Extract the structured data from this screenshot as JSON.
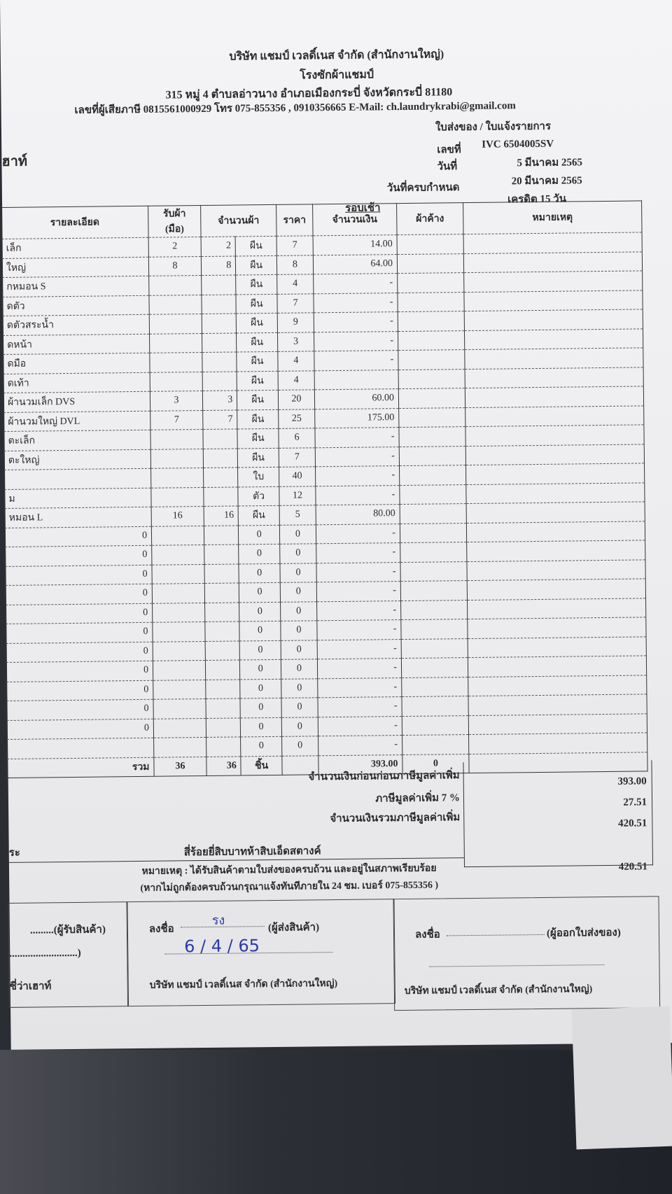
{
  "company": {
    "name": "บริษัท แชมป์ เวลดิ์เนส จำกัด (สำนักงานใหญ่)",
    "subtitle": "โรงซักผ้าแชมป์",
    "address": "315 หมู่ 4 ตำบลอ่าวนาง อำเภอเมืองกระบี่ จังหวัดกระบี่ 81180",
    "contact": "เลขที่ผู้เสียภาษี 0815561000929 โทร 075-855356 , 0910356665 E-Mail: ch.laundrykrabi@gmail.com"
  },
  "doc": {
    "type": "ใบส่งของ / ใบแจ้งรายการ",
    "customer_partial": "ฮาท์",
    "no_label": "เลขที่",
    "no": "IVC 6504005SV",
    "date_label": "วันที่",
    "date": "5 มีนาคม 2565",
    "due_label": "วันที่ครบกำหนด",
    "due": "20 มีนาคม 2565",
    "credit": "เครดิต 15 วัน",
    "round": "รอบเช้า"
  },
  "headers": [
    "รายละเอียด",
    "รับผ้า (มือ)",
    "จำนวนผ้า",
    "ราคา",
    "จำนวนเงิน",
    "ผ้าค้าง",
    "หมายเหตุ"
  ],
  "rows": [
    [
      "เล็ก",
      "2",
      "2",
      "ผืน",
      "7",
      "14.00"
    ],
    [
      "ใหญ่",
      "8",
      "8",
      "ผืน",
      "8",
      "64.00"
    ],
    [
      "กหมอน S",
      "",
      "",
      "ผืน",
      "4",
      "-"
    ],
    [
      "ดตัว",
      "",
      "",
      "ผืน",
      "7",
      "-"
    ],
    [
      "ดตัวสระน้ำ",
      "",
      "",
      "ผืน",
      "9",
      "-"
    ],
    [
      "ดหน้า",
      "",
      "",
      "ผืน",
      "3",
      "-"
    ],
    [
      "ดมือ",
      "",
      "",
      "ผืน",
      "4",
      "-"
    ],
    [
      "ดเท้า",
      "",
      "",
      "ผืน",
      "4",
      ""
    ],
    [
      "ผ้านวมเล็ก DVS",
      "3",
      "3",
      "ผืน",
      "20",
      "60.00"
    ],
    [
      "ผ้านวมใหญ่ DVL",
      "7",
      "7",
      "ผืน",
      "25",
      "175.00"
    ],
    [
      "ตะเล็ก",
      "",
      "",
      "ผืน",
      "6",
      "-"
    ],
    [
      "ตะใหญ่",
      "",
      "",
      "ผืน",
      "7",
      "-"
    ],
    [
      "",
      "",
      "",
      "ใบ",
      "40",
      "-"
    ],
    [
      "ม",
      "",
      "",
      "ตัว",
      "12",
      "-"
    ],
    [
      "หมอน L",
      "16",
      "16",
      "ผืน",
      "5",
      "80.00"
    ],
    [
      "0",
      "",
      "",
      "0",
      "0",
      "-"
    ],
    [
      "0",
      "",
      "",
      "0",
      "0",
      "-"
    ],
    [
      "0",
      "",
      "",
      "0",
      "0",
      "-"
    ],
    [
      "0",
      "",
      "",
      "0",
      "0",
      "-"
    ],
    [
      "0",
      "",
      "",
      "0",
      "0",
      "-"
    ],
    [
      "0",
      "",
      "",
      "0",
      "0",
      "-"
    ],
    [
      "0",
      "",
      "",
      "0",
      "0",
      "-"
    ],
    [
      "0",
      "",
      "",
      "0",
      "0",
      "-"
    ],
    [
      "0",
      "",
      "",
      "0",
      "0",
      "-"
    ],
    [
      "0",
      "",
      "",
      "0",
      "0",
      "-"
    ],
    [
      "0",
      "",
      "",
      "0",
      "0",
      "-"
    ],
    [
      "",
      "",
      "",
      "0",
      "0",
      "-"
    ]
  ],
  "total": {
    "label": "รวม",
    "received": "36",
    "qty": "36",
    "unit": "ชิ้น",
    "amount": "393.00",
    "outstanding": "0"
  },
  "summary": {
    "before_vat_label": "จำนวนเงินก่อนก่อนภาษีมูลค่าเพิ่ม",
    "before_vat": "393.00",
    "vat_label": "ภาษีมูลค่าเพิ่ม 7 %",
    "vat": "27.51",
    "with_vat_label": "จำนวนเงินรวมภาษีมูลค่าเพิ่ม",
    "with_vat": "420.51",
    "words_prefix": "ระ",
    "words": "สี่ร้อยยี่สิบบาทห้าสิบเอ็ดสตางค์",
    "grand": "420.51"
  },
  "note1": "หมายเหตุ : ได้รับสินค้าตามใบส่งของครบถ้วน และอยู่ในสภาพเรียบร้อย",
  "note2": "(หากไม่ถูกต้องครบถ้วนกรุณาแจ้งทันทีภายใน 24 ชม. เบอร์ 075-855356 )",
  "sign": {
    "receiver": ".........(ผู้รับสินค้า)",
    "receiver_paren": "..........................)",
    "receiver_co": "ชี่ว่าเฮาท์",
    "sign_label": "ลงชื่อ",
    "sender": "(ผู้ส่งสินค้า)",
    "sender_sig": "รง",
    "sender_date": "6 / 4 / 65",
    "company": "บริษัท แชมป์ เวลดิ์เนส จำกัด (สำนักงานใหญ่)",
    "issuer": "(ผู้ออกใบส่งของ)"
  }
}
